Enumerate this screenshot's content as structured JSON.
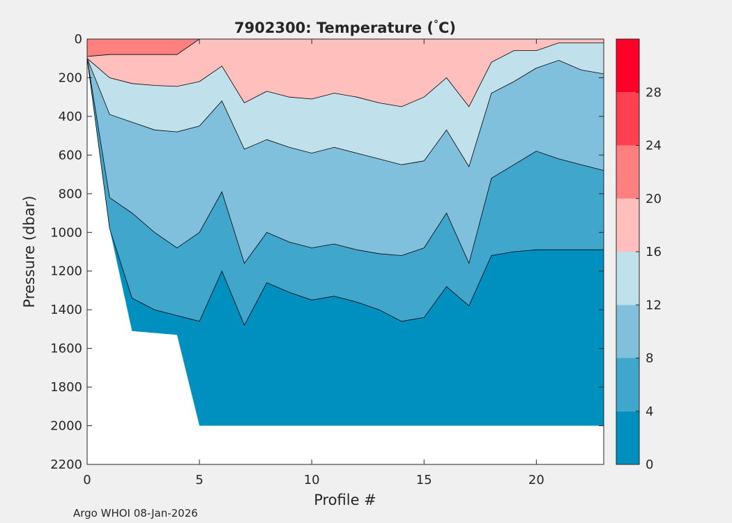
{
  "chart_data": {
    "type": "heatmap",
    "subtype": "filled-contour",
    "title_pre": "7902300:  Temperature (",
    "title_deg": "°",
    "title_post": "C)",
    "xlabel": "Profile #",
    "ylabel": "Pressure (dbar)",
    "xlim": [
      0,
      23
    ],
    "ylim": [
      0,
      2200
    ],
    "y_reversed": true,
    "xticks": [
      0,
      5,
      10,
      15,
      20
    ],
    "xtick_labels": [
      "0",
      "5",
      "10",
      "15",
      "20"
    ],
    "yticks": [
      0,
      200,
      400,
      600,
      800,
      1000,
      1200,
      1400,
      1600,
      1800,
      2000,
      2200
    ],
    "ytick_labels": [
      "0",
      "200",
      "400",
      "600",
      "800",
      "1000",
      "1200",
      "1400",
      "1600",
      "1800",
      "2000",
      "2200"
    ],
    "colorbar": {
      "range": [
        0,
        32
      ],
      "ticks": [
        0,
        4,
        8,
        12,
        16,
        20,
        24,
        28
      ],
      "tick_labels": [
        "0",
        "4",
        "8",
        "12",
        "16",
        "20",
        "24",
        "28"
      ],
      "levels": [
        {
          "lo": 0,
          "hi": 4,
          "color": "#0090bf"
        },
        {
          "lo": 4,
          "hi": 8,
          "color": "#40a6cc"
        },
        {
          "lo": 8,
          "hi": 12,
          "color": "#80c0dd"
        },
        {
          "lo": 12,
          "hi": 16,
          "color": "#c0e0ec"
        },
        {
          "lo": 16,
          "hi": 20,
          "color": "#ffbfbc"
        },
        {
          "lo": 20,
          "hi": 24,
          "color": "#ff807f"
        },
        {
          "lo": 24,
          "hi": 28,
          "color": "#ff4050"
        },
        {
          "lo": 28,
          "hi": 32,
          "color": "#ff0028"
        }
      ]
    },
    "profiles": [
      0,
      1,
      2,
      3,
      4,
      5,
      6,
      7,
      8,
      9,
      10,
      11,
      12,
      13,
      14,
      15,
      16,
      17,
      18,
      19,
      20,
      21,
      22,
      23
    ],
    "profile_max_pressure": [
      100,
      980,
      1510,
      1520,
      1530,
      2000,
      2000,
      2000,
      2000,
      2000,
      2000,
      2000,
      2000,
      2000,
      2000,
      2000,
      2000,
      2000,
      2000,
      2000,
      2000,
      2000,
      2000,
      2000
    ],
    "isotherm_depths_dbar": [
      {
        "temp": 20,
        "depth": [
          90,
          80,
          80,
          80,
          80,
          0,
          0,
          0,
          0,
          0,
          0,
          0,
          0,
          0,
          0,
          0,
          0,
          0,
          0,
          0,
          0,
          0,
          0,
          0
        ]
      },
      {
        "temp": 16,
        "depth": [
          100,
          200,
          230,
          240,
          245,
          220,
          140,
          330,
          270,
          300,
          310,
          280,
          300,
          330,
          350,
          300,
          200,
          350,
          120,
          60,
          60,
          20,
          20,
          20
        ]
      },
      {
        "temp": 12,
        "depth": [
          100,
          390,
          430,
          470,
          480,
          450,
          320,
          570,
          520,
          560,
          590,
          560,
          590,
          620,
          650,
          630,
          470,
          660,
          280,
          220,
          150,
          110,
          160,
          180
        ]
      },
      {
        "temp": 8,
        "depth": [
          100,
          820,
          900,
          1000,
          1080,
          1000,
          790,
          1160,
          1000,
          1050,
          1080,
          1060,
          1090,
          1110,
          1120,
          1080,
          900,
          1160,
          720,
          650,
          580,
          620,
          650,
          680
        ]
      },
      {
        "temp": 4,
        "depth": [
          100,
          980,
          1340,
          1400,
          1430,
          1460,
          1200,
          1480,
          1260,
          1310,
          1350,
          1330,
          1360,
          1400,
          1460,
          1440,
          1280,
          1380,
          1120,
          1100,
          1090,
          1090,
          1090,
          1090
        ]
      }
    ],
    "footer": "Argo WHOI 08-Jan-2026"
  }
}
